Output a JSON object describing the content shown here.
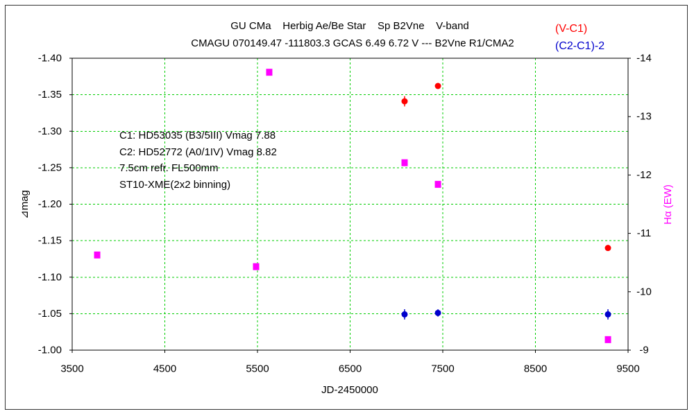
{
  "chart_data": {
    "type": "scatter",
    "title": "GU CMa    Herbig Ae/Be Star    Sp B2Vne    V-band",
    "subtitle": "CMAGU 070149.47 -111803.3 GCAS 6.49 6.72 V --- B2Vne R1/CMA2",
    "x_axis": {
      "label": "JD-2450000",
      "range": [
        3500,
        9500
      ],
      "ticks": [
        "3500",
        "4500",
        "5500",
        "6500",
        "7500",
        "8500",
        "9500"
      ]
    },
    "y_axis": {
      "label": "⊿mag",
      "range": [
        -1.4,
        -1.0
      ],
      "reversed": true,
      "ticks": [
        "-1.40",
        "-1.35",
        "-1.30",
        "-1.25",
        "-1.20",
        "-1.15",
        "-1.10",
        "-1.05",
        "-1.00"
      ]
    },
    "y2_axis": {
      "label": "Hα (EW)",
      "range": [
        -14,
        -9
      ],
      "reversed": true,
      "ticks": [
        "-14",
        "-13",
        "-12",
        "-11",
        "-10",
        "-9"
      ]
    },
    "grid": true,
    "grid_color": "#00cc00",
    "legend_position": "top-right",
    "series": [
      {
        "name": "(V-C1)",
        "axis": "left",
        "color": "#ff0000",
        "marker": "circle",
        "points": [
          {
            "x": 7088,
            "y": -1.341,
            "yerr": 0.007
          },
          {
            "x": 7448,
            "y": -1.362,
            "yerr": 0.003
          },
          {
            "x": 9283,
            "y": -1.14,
            "yerr": 0.003
          }
        ]
      },
      {
        "name": "(C2-C1)-2",
        "axis": "left",
        "color": "#0000cc",
        "marker": "circle",
        "points": [
          {
            "x": 7088,
            "y": -1.049,
            "yerr": 0.007
          },
          {
            "x": 7448,
            "y": -1.051,
            "yerr": 0.005
          },
          {
            "x": 9283,
            "y": -1.049,
            "yerr": 0.007
          }
        ]
      },
      {
        "axis": "right",
        "color": "#ff00ff",
        "marker": "square",
        "points": [
          {
            "x": 3770,
            "y": -10.63
          },
          {
            "x": 5485,
            "y": -10.43
          },
          {
            "x": 5627,
            "y": -13.76
          },
          {
            "x": 7088,
            "y": -12.21
          },
          {
            "x": 7448,
            "y": -11.84
          },
          {
            "x": 9283,
            "y": -9.18
          }
        ]
      }
    ],
    "annotations": [
      "C1: HD53035 (B3/5III) Vmag 7.88",
      "C2: HD52772 (A0/1IV) Vmag 8.82",
      "7.5cm refr. FL500mm",
      "ST10-XME(2x2 binning)"
    ]
  }
}
